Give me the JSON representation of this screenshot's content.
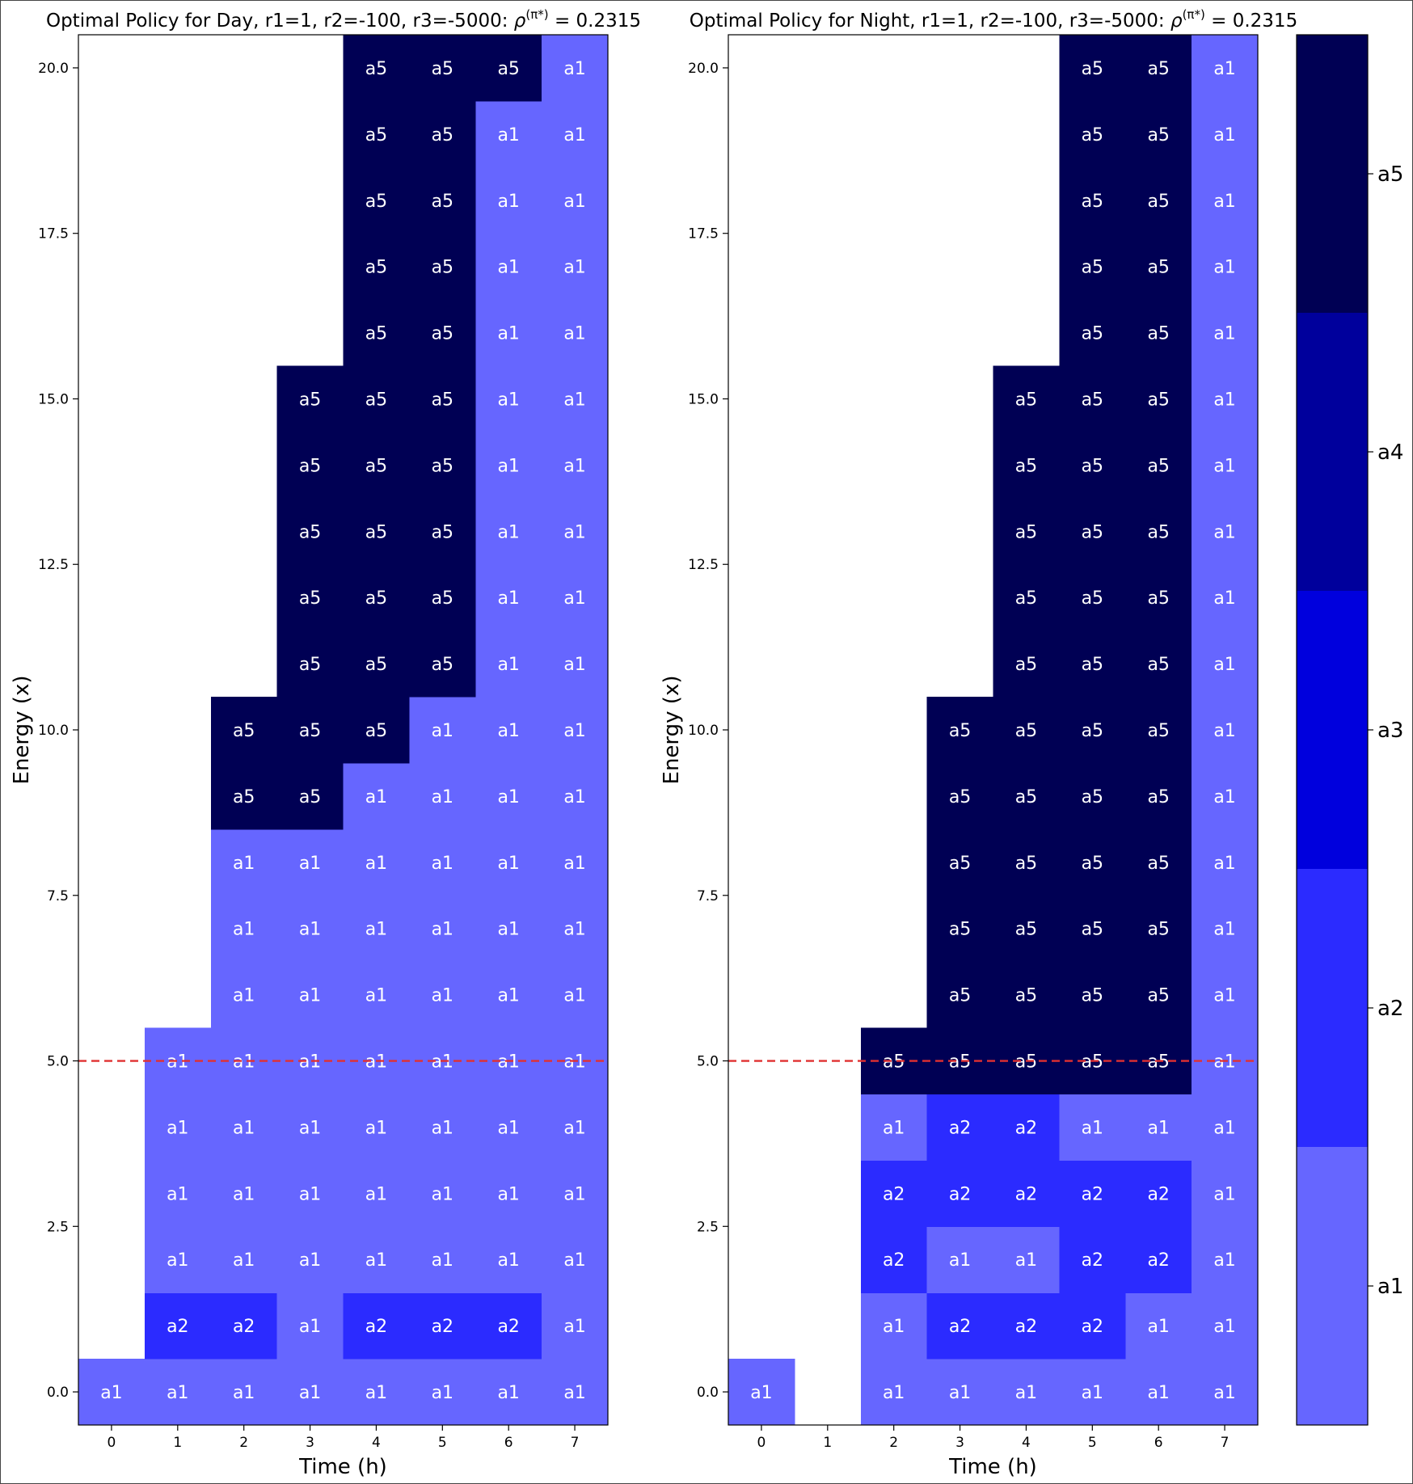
{
  "colors": {
    "a1": "#6666ff",
    "a2": "#2b2bff",
    "a3": "#0000dd",
    "a4": "#00009c",
    "a5": "#000054",
    "threshold_line": "#e03030"
  },
  "colorbar": {
    "labels": [
      "a5",
      "a4",
      "a3",
      "a2",
      "a1"
    ]
  },
  "chart_data": [
    {
      "type": "heatmap",
      "title": "Optimal Policy for Day, r1=1, r2=-100, r3=-5000: ρ(π*) = 0.2315",
      "title_parts": {
        "main": "Optimal Policy for Day, r1=1, r2=-100, r3=-5000: ",
        "rho": "ρ",
        "sup": "(π*)",
        "value": " = 0.2315"
      },
      "xlabel": "Time (h)",
      "ylabel": "Energy (x)",
      "x_ticks": [
        "0",
        "1",
        "2",
        "3",
        "4",
        "5",
        "6",
        "7"
      ],
      "y_ticks": [
        "0.0",
        "2.5",
        "5.0",
        "7.5",
        "10.0",
        "12.5",
        "15.0",
        "17.5",
        "20.0"
      ],
      "y_tick_values": [
        0,
        2.5,
        5,
        7.5,
        10,
        12.5,
        15,
        17.5,
        20
      ],
      "xlim": [
        -0.5,
        7.5
      ],
      "ylim": [
        -0.5,
        20.5
      ],
      "threshold_y": 5.0,
      "columns": [
        {
          "x": 0,
          "y_start": 0,
          "actions": [
            "a1"
          ]
        },
        {
          "x": 1,
          "y_start": 0,
          "actions": [
            "a1",
            "a2",
            "a1",
            "a1",
            "a1",
            "a1"
          ]
        },
        {
          "x": 2,
          "y_start": 0,
          "actions": [
            "a1",
            "a2",
            "a1",
            "a1",
            "a1",
            "a1",
            "a1",
            "a1",
            "a1",
            "a5",
            "a5"
          ]
        },
        {
          "x": 3,
          "y_start": 0,
          "actions": [
            "a1",
            "a1",
            "a1",
            "a1",
            "a1",
            "a1",
            "a1",
            "a1",
            "a1",
            "a5",
            "a5",
            "a5",
            "a5",
            "a5",
            "a5",
            "a5"
          ]
        },
        {
          "x": 4,
          "y_start": 0,
          "actions": [
            "a1",
            "a2",
            "a1",
            "a1",
            "a1",
            "a1",
            "a1",
            "a1",
            "a1",
            "a1",
            "a5",
            "a5",
            "a5",
            "a5",
            "a5",
            "a5",
            "a5",
            "a5",
            "a5",
            "a5",
            "a5"
          ]
        },
        {
          "x": 5,
          "y_start": 0,
          "actions": [
            "a1",
            "a2",
            "a1",
            "a1",
            "a1",
            "a1",
            "a1",
            "a1",
            "a1",
            "a1",
            "a1",
            "a5",
            "a5",
            "a5",
            "a5",
            "a5",
            "a5",
            "a5",
            "a5",
            "a5",
            "a5"
          ]
        },
        {
          "x": 6,
          "y_start": 0,
          "actions": [
            "a1",
            "a2",
            "a1",
            "a1",
            "a1",
            "a1",
            "a1",
            "a1",
            "a1",
            "a1",
            "a1",
            "a1",
            "a1",
            "a1",
            "a1",
            "a1",
            "a1",
            "a1",
            "a1",
            "a1",
            "a5"
          ]
        },
        {
          "x": 7,
          "y_start": 0,
          "actions": [
            "a1",
            "a1",
            "a1",
            "a1",
            "a1",
            "a1",
            "a1",
            "a1",
            "a1",
            "a1",
            "a1",
            "a1",
            "a1",
            "a1",
            "a1",
            "a1",
            "a1",
            "a1",
            "a1",
            "a1",
            "a1"
          ]
        }
      ]
    },
    {
      "type": "heatmap",
      "title": "Optimal Policy for Night, r1=1, r2=-100, r3=-5000: ρ(π*) = 0.2315",
      "title_parts": {
        "main": "Optimal Policy for Night, r1=1, r2=-100, r3=-5000: ",
        "rho": "ρ",
        "sup": "(π*)",
        "value": " = 0.2315"
      },
      "xlabel": "Time (h)",
      "ylabel": "Energy (x)",
      "x_ticks": [
        "0",
        "1",
        "2",
        "3",
        "4",
        "5",
        "6",
        "7"
      ],
      "y_ticks": [
        "0.0",
        "2.5",
        "5.0",
        "7.5",
        "10.0",
        "12.5",
        "15.0",
        "17.5",
        "20.0"
      ],
      "y_tick_values": [
        0,
        2.5,
        5,
        7.5,
        10,
        12.5,
        15,
        17.5,
        20
      ],
      "xlim": [
        -0.5,
        7.5
      ],
      "ylim": [
        -0.5,
        20.5
      ],
      "threshold_y": 5.0,
      "columns": [
        {
          "x": 0,
          "y_start": 0,
          "actions": [
            "a1"
          ]
        },
        {
          "x": 1,
          "y_start": 0,
          "actions": []
        },
        {
          "x": 2,
          "y_start": 0,
          "actions": [
            "a1",
            "a1",
            "a2",
            "a2",
            "a1",
            "a5"
          ]
        },
        {
          "x": 3,
          "y_start": 0,
          "actions": [
            "a1",
            "a2",
            "a1",
            "a2",
            "a2",
            "a5",
            "a5",
            "a5",
            "a5",
            "a5",
            "a5"
          ]
        },
        {
          "x": 4,
          "y_start": 0,
          "actions": [
            "a1",
            "a2",
            "a1",
            "a2",
            "a2",
            "a5",
            "a5",
            "a5",
            "a5",
            "a5",
            "a5",
            "a5",
            "a5",
            "a5",
            "a5",
            "a5"
          ]
        },
        {
          "x": 5,
          "y_start": 0,
          "actions": [
            "a1",
            "a2",
            "a2",
            "a2",
            "a1",
            "a5",
            "a5",
            "a5",
            "a5",
            "a5",
            "a5",
            "a5",
            "a5",
            "a5",
            "a5",
            "a5",
            "a5",
            "a5",
            "a5",
            "a5",
            "a5"
          ]
        },
        {
          "x": 6,
          "y_start": 0,
          "actions": [
            "a1",
            "a1",
            "a2",
            "a2",
            "a1",
            "a5",
            "a5",
            "a5",
            "a5",
            "a5",
            "a5",
            "a5",
            "a5",
            "a5",
            "a5",
            "a5",
            "a5",
            "a5",
            "a5",
            "a5",
            "a5"
          ]
        },
        {
          "x": 7,
          "y_start": 0,
          "actions": [
            "a1",
            "a1",
            "a1",
            "a1",
            "a1",
            "a1",
            "a1",
            "a1",
            "a1",
            "a1",
            "a1",
            "a1",
            "a1",
            "a1",
            "a1",
            "a1",
            "a1",
            "a1",
            "a1",
            "a1",
            "a1"
          ]
        }
      ]
    }
  ]
}
